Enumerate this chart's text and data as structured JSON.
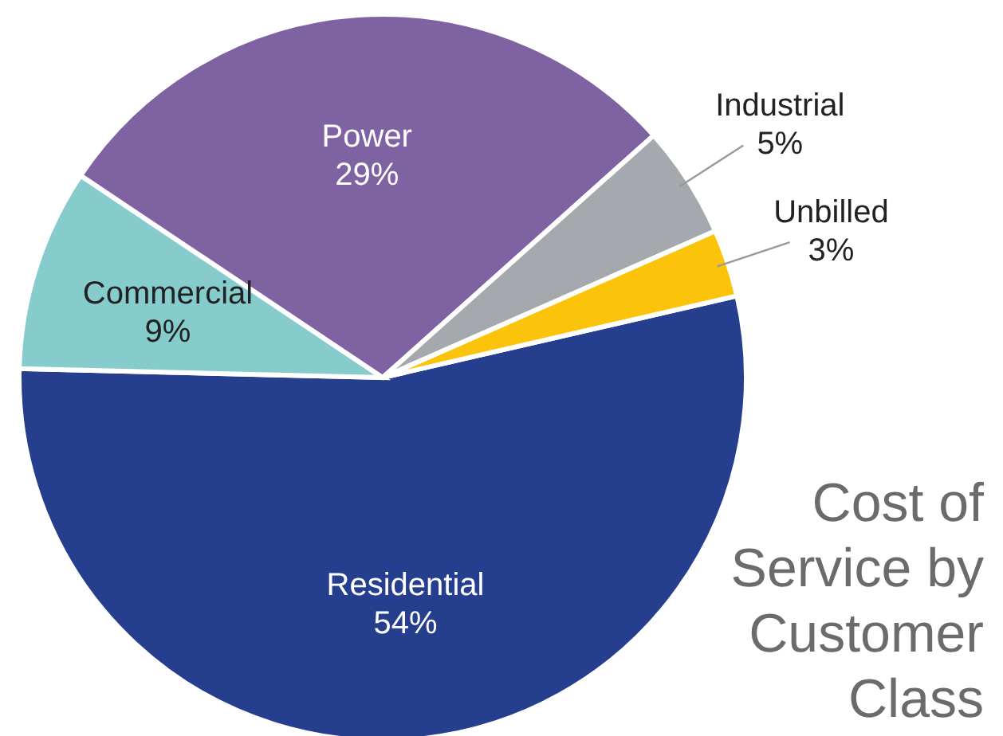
{
  "chart_data": {
    "type": "pie",
    "title": "Cost of Service by Customer Class",
    "categories": [
      "Residential",
      "Commercial",
      "Power",
      "Industrial",
      "Unbilled"
    ],
    "values": [
      54,
      9,
      29,
      5,
      3
    ],
    "value_labels": [
      "54%",
      "9%",
      "29%",
      "5%",
      "3%"
    ],
    "colors": [
      "#253f8e",
      "#86cccc",
      "#7f62a1",
      "#a5a8ad",
      "#fcc30b"
    ],
    "legend": false
  }
}
